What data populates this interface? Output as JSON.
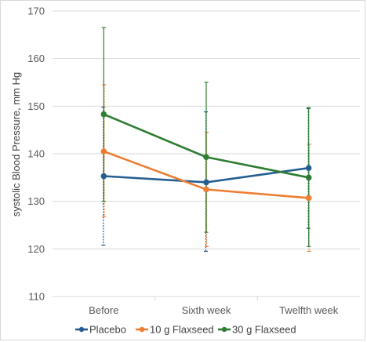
{
  "chart_data": {
    "type": "line",
    "title": "",
    "ylabel": "systolic Blood Pressure, mm Hg",
    "xlabel": "",
    "categories": [
      "Before",
      "Sixth week",
      "Twelfth week"
    ],
    "ylim": [
      110,
      170
    ],
    "yticks": [
      110,
      120,
      130,
      140,
      150,
      160,
      170
    ],
    "grid": "horizontal",
    "legend_position": "bottom",
    "series": [
      {
        "name": "Placebo",
        "color": "#255E91",
        "values": [
          135.3,
          134.0,
          137.0
        ],
        "error_high": [
          149.8,
          148.8,
          149.5
        ],
        "error_low": [
          120.8,
          119.5,
          124.3
        ]
      },
      {
        "name": "10 g Flaxseed",
        "color": "#ED7D31",
        "values": [
          140.5,
          132.5,
          130.7
        ],
        "error_high": [
          154.5,
          144.5,
          142.0
        ],
        "error_low": [
          126.8,
          120.5,
          119.5
        ]
      },
      {
        "name": "30 g Flaxseed",
        "color": "#2E7D32",
        "values": [
          148.3,
          139.3,
          135.0
        ],
        "error_high": [
          166.5,
          155.0,
          149.7
        ],
        "error_low": [
          130.0,
          123.5,
          120.5
        ]
      }
    ]
  }
}
